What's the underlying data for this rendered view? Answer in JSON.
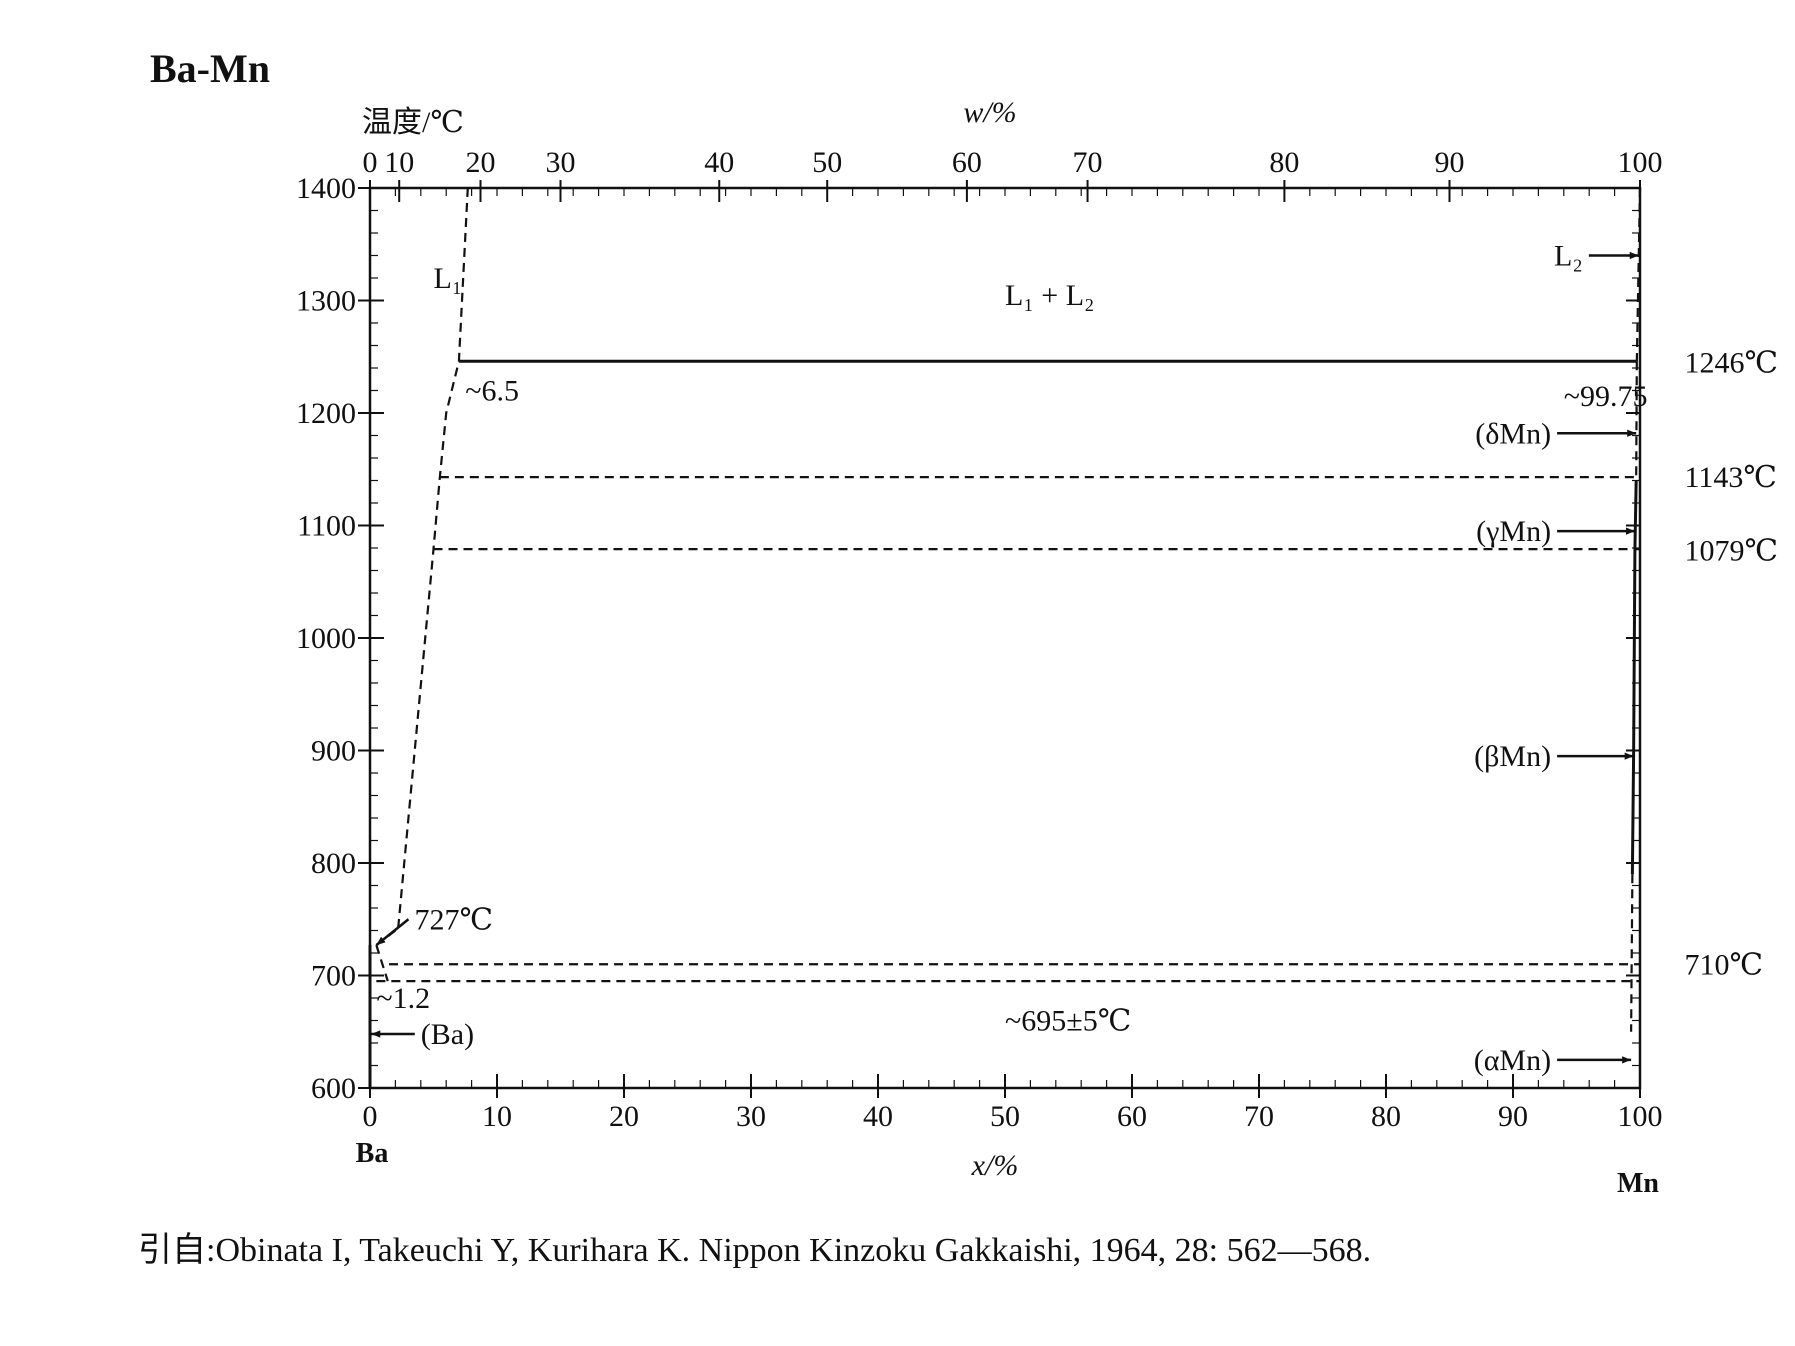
{
  "chart_data": {
    "type": "line",
    "title": "Ba-Mn",
    "ylabel": "温度/℃",
    "xlabel": "x/%",
    "x2label": "w/%",
    "ylim": [
      600,
      1400
    ],
    "xlim": [
      0,
      100
    ],
    "y_ticks": [
      600,
      700,
      800,
      900,
      1000,
      1100,
      1200,
      1300,
      1400
    ],
    "x_ticks": [
      0,
      10,
      20,
      30,
      40,
      50,
      60,
      70,
      80,
      90,
      100
    ],
    "x2_ticks": [
      {
        "label": "0",
        "x": 0
      },
      {
        "label": "10",
        "x": 2.3
      },
      {
        "label": "20",
        "x": 8.7
      },
      {
        "label": "30",
        "x": 15
      },
      {
        "label": "40",
        "x": 27.5
      },
      {
        "label": "50",
        "x": 36
      },
      {
        "label": "60",
        "x": 47
      },
      {
        "label": "70",
        "x": 56.5
      },
      {
        "label": "80",
        "x": 72
      },
      {
        "label": "90",
        "x": 85
      },
      {
        "label": "100",
        "x": 100
      }
    ],
    "x_end_labels": {
      "left": "Ba",
      "right": "Mn"
    },
    "series": [
      {
        "style": "dashed",
        "points": [
          [
            7.7,
            1400
          ],
          [
            7.0,
            1246
          ],
          [
            6.0,
            1200
          ],
          [
            5.5,
            1143
          ],
          [
            5.0,
            1079
          ],
          [
            2.2,
            740
          ]
        ]
      },
      {
        "style": "dashed",
        "points": [
          [
            0.5,
            727
          ],
          [
            2.0,
            740
          ]
        ]
      },
      {
        "style": "dashed",
        "points": [
          [
            0.5,
            727
          ],
          [
            1.4,
            695
          ]
        ]
      },
      {
        "style": "solid",
        "points": [
          [
            7.0,
            1246
          ],
          [
            99.75,
            1246
          ]
        ]
      },
      {
        "style": "dashed",
        "points": [
          [
            5.5,
            1143
          ],
          [
            100,
            1143
          ]
        ]
      },
      {
        "style": "dashed",
        "points": [
          [
            5.0,
            1079
          ],
          [
            100,
            1079
          ]
        ]
      },
      {
        "style": "dashed",
        "points": [
          [
            1.5,
            710
          ],
          [
            100,
            710
          ]
        ]
      },
      {
        "style": "dashed",
        "points": [
          [
            0.5,
            695
          ],
          [
            100,
            695
          ]
        ]
      },
      {
        "style": "dashed",
        "points": [
          [
            100,
            1400
          ],
          [
            99.75,
            1246
          ]
        ]
      },
      {
        "style": "solid",
        "points": [
          [
            99.7,
            1140
          ],
          [
            99.6,
            1079
          ],
          [
            99.5,
            900
          ],
          [
            99.4,
            790
          ]
        ]
      },
      {
        "style": "dashed",
        "points": [
          [
            99.75,
            1246
          ],
          [
            99.7,
            1143
          ]
        ]
      },
      {
        "style": "dashed",
        "points": [
          [
            99.4,
            790
          ],
          [
            99.3,
            650
          ]
        ]
      },
      {
        "style": "solid",
        "points": [
          [
            0,
            727
          ],
          [
            0,
            600
          ]
        ]
      }
    ],
    "annotations": [
      {
        "text": "L₁",
        "x": 5,
        "y": 1320
      },
      {
        "text": "L₁ + L₂",
        "x": 50,
        "y": 1305
      },
      {
        "text": "L₂",
        "x": 95.5,
        "y": 1340,
        "arrow_to": [
          99.9,
          1340
        ]
      },
      {
        "text": "~6.5",
        "x": 7.5,
        "y": 1220
      },
      {
        "text": "~99.75",
        "x": 94,
        "y": 1215
      },
      {
        "text": "1246℃",
        "x": 103.5,
        "y": 1245
      },
      {
        "text": "(δMn)",
        "x": 93,
        "y": 1182,
        "arrow_to": [
          99.7,
          1182
        ]
      },
      {
        "text": "1143℃",
        "x": 103.5,
        "y": 1143
      },
      {
        "text": "(γMn)",
        "x": 93,
        "y": 1095,
        "arrow_to": [
          99.6,
          1095
        ]
      },
      {
        "text": "1079℃",
        "x": 103.5,
        "y": 1078
      },
      {
        "text": "(βMn)",
        "x": 93,
        "y": 895,
        "arrow_to": [
          99.5,
          895
        ]
      },
      {
        "text": "727℃",
        "x": 3.5,
        "y": 750,
        "arrow_to": [
          0.5,
          727
        ]
      },
      {
        "text": "~1.2",
        "x": 0.5,
        "y": 680
      },
      {
        "text": "(Ba)",
        "x": 4,
        "y": 648,
        "arrow_to": [
          0.1,
          648
        ]
      },
      {
        "text": "~695±5℃",
        "x": 50,
        "y": 660
      },
      {
        "text": "710℃",
        "x": 103.5,
        "y": 710
      },
      {
        "text": "(αMn)",
        "x": 93,
        "y": 625,
        "arrow_to": [
          99.3,
          625
        ]
      }
    ]
  },
  "citation": "引自:Obinata I, Takeuchi Y, Kurihara K.  Nippon Kinzoku Gakkaishi, 1964, 28: 562—568."
}
